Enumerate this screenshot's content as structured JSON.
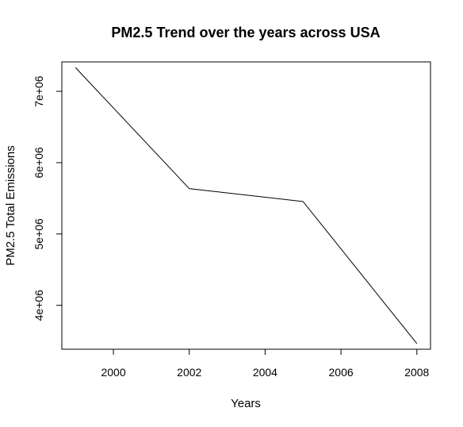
{
  "chart_data": {
    "type": "line",
    "title": "PM2.5 Trend over the years across USA",
    "xlabel": "Years",
    "ylabel": "PM2.5 Total Emissions",
    "x": [
      1999,
      2002,
      2005,
      2008
    ],
    "series": [
      {
        "values": [
          7332967,
          5635780,
          5454703,
          3464206
        ]
      }
    ],
    "xlim": [
      1998.64,
      2008.36
    ],
    "ylim": [
      3384616,
      7412557
    ],
    "xticks": [
      2000,
      2002,
      2004,
      2006,
      2008
    ],
    "xtick_labels": [
      "2000",
      "2002",
      "2004",
      "2006",
      "2008"
    ],
    "yticks": [
      4000000,
      5000000,
      6000000,
      7000000
    ],
    "ytick_labels": [
      "4e+06",
      "5e+06",
      "6e+06",
      "7e+06"
    ],
    "grid": false,
    "legend": "none",
    "line_color": "#000000"
  }
}
